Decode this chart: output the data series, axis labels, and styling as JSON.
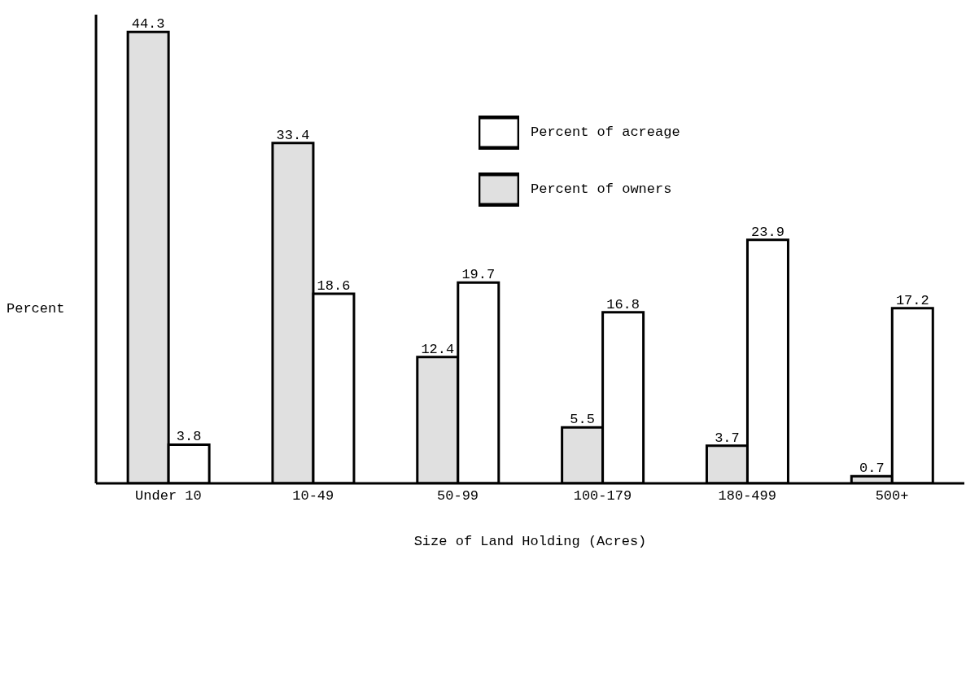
{
  "chart_data": {
    "type": "bar",
    "xlabel": "Size of Land Holding (Acres)",
    "ylabel": "Percent",
    "categories": [
      "Under 10",
      "10-49",
      "50-99",
      "100-179",
      "180-499",
      "500+"
    ],
    "series": [
      {
        "name": "Percent of owners",
        "color": "#e0e0e0",
        "values": [
          44.3,
          33.4,
          12.4,
          5.5,
          3.7,
          0.7
        ]
      },
      {
        "name": "Percent of acreage",
        "color": "#ffffff",
        "values": [
          3.8,
          18.6,
          19.7,
          16.8,
          23.9,
          17.2
        ]
      }
    ],
    "ylim": [
      0,
      46
    ],
    "tick_labels": "x",
    "data_labels": true,
    "grid": false,
    "legend": "top right"
  }
}
